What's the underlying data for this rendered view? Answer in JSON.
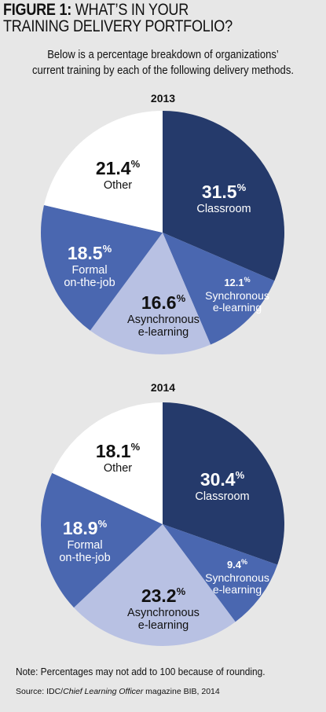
{
  "header": {
    "figure_label": "FIGURE 1:",
    "title_line1": "WHAT’S IN YOUR",
    "title_line2": "TRAINING DELIVERY PORTFOLIO?",
    "subtitle_line1": "Below is a percentage breakdown of organizations’",
    "subtitle_line2": "current training by each of the following delivery methods."
  },
  "chart_data": [
    {
      "type": "pie",
      "title": "2013",
      "slices": [
        {
          "label": "Classroom",
          "value": 31.5,
          "pct_text": "31.5",
          "label_lines": [
            "Classroom"
          ],
          "color": "#253a6b"
        },
        {
          "label": "Synchronous e-learning",
          "value": 12.1,
          "pct_text": "12.1",
          "label_lines": [
            "Synchronous",
            "e-learning"
          ],
          "color": "#4a67b0"
        },
        {
          "label": "Asynchronous e-learning",
          "value": 16.6,
          "pct_text": "16.6",
          "label_lines": [
            "Asynchronous",
            "e-learning"
          ],
          "color": "#b8c1e3"
        },
        {
          "label": "Formal on-the-job",
          "value": 18.5,
          "pct_text": "18.5",
          "label_lines": [
            "Formal",
            "on-the-job"
          ],
          "color": "#4a67b0"
        },
        {
          "label": "Other",
          "value": 21.4,
          "pct_text": "21.4",
          "label_lines": [
            "Other"
          ],
          "color": "#ffffff"
        }
      ]
    },
    {
      "type": "pie",
      "title": "2014",
      "slices": [
        {
          "label": "Classroom",
          "value": 30.4,
          "pct_text": "30.4",
          "label_lines": [
            "Classroom"
          ],
          "color": "#253a6b"
        },
        {
          "label": "Synchronous e-learning",
          "value": 9.4,
          "pct_text": "9.4",
          "label_lines": [
            "Synchronous",
            "e-learning"
          ],
          "color": "#4a67b0"
        },
        {
          "label": "Asynchronous e-learning",
          "value": 23.2,
          "pct_text": "23.2",
          "label_lines": [
            "Asynchronous",
            "e-learning"
          ],
          "color": "#b8c1e3"
        },
        {
          "label": "Formal on-the-job",
          "value": 18.9,
          "pct_text": "18.9",
          "label_lines": [
            "Formal",
            "on-the-job"
          ],
          "color": "#4a67b0"
        },
        {
          "label": "Other",
          "value": 18.1,
          "pct_text": "18.1",
          "label_lines": [
            "Other"
          ],
          "color": "#ffffff"
        }
      ]
    }
  ],
  "footer": {
    "note": "Note: Percentages may not add to 100 because of rounding.",
    "source_prefix": "Source: IDC/",
    "source_publication": "Chief Learning Officer",
    "source_suffix": " magazine BIB, 2014"
  }
}
